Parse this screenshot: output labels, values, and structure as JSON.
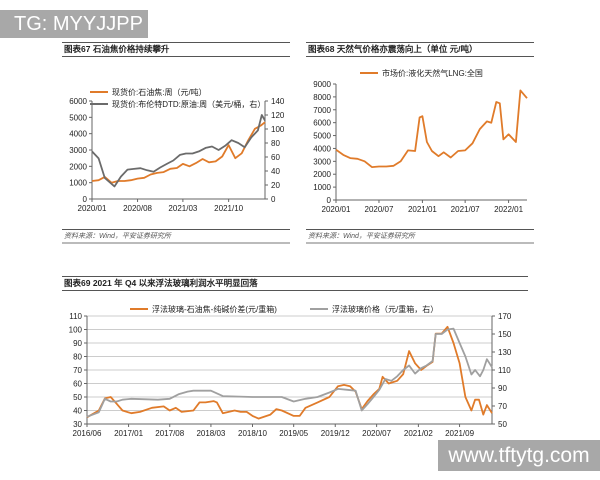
{
  "watermarks": {
    "top": "TG: MYYJJPP",
    "bottom": "www.tftytg.com"
  },
  "source": "资料来源：Wind，平安证券研究所",
  "chart_data": [
    {
      "id": "c67",
      "type": "line",
      "title": "图表67    石油焦价格持续攀升",
      "ylim": [
        0,
        6000
      ],
      "yticks": [
        0,
        1000,
        2000,
        3000,
        4000,
        5000,
        6000
      ],
      "y2lim": [
        0,
        140
      ],
      "y2ticks": [
        0,
        20,
        40,
        60,
        80,
        100,
        120,
        140
      ],
      "xlim": [
        "2020-01-01",
        "2022-03-20"
      ],
      "xticks": [
        "2020/01",
        "2020/08",
        "2021/03",
        "2021/10"
      ],
      "legend": "top",
      "grid": false,
      "series": [
        {
          "name": "现货价:石油焦:周（元/吨）",
          "axis": "left",
          "color": "#e07b2a",
          "points": [
            [
              "2020-01-01",
              1100
            ],
            [
              "2020-02-01",
              1150
            ],
            [
              "2020-03-01",
              1350
            ],
            [
              "2020-04-01",
              1000
            ],
            [
              "2020-05-01",
              1100
            ],
            [
              "2020-06-01",
              1100
            ],
            [
              "2020-07-01",
              1150
            ],
            [
              "2020-08-01",
              1250
            ],
            [
              "2020-09-01",
              1300
            ],
            [
              "2020-10-01",
              1500
            ],
            [
              "2020-11-01",
              1600
            ],
            [
              "2020-12-01",
              1650
            ],
            [
              "2021-01-01",
              1850
            ],
            [
              "2021-02-01",
              1900
            ],
            [
              "2021-03-01",
              2150
            ],
            [
              "2021-04-01",
              2000
            ],
            [
              "2021-05-01",
              2200
            ],
            [
              "2021-06-01",
              2450
            ],
            [
              "2021-07-01",
              2250
            ],
            [
              "2021-08-01",
              2300
            ],
            [
              "2021-09-01",
              2600
            ],
            [
              "2021-10-01",
              3300
            ],
            [
              "2021-11-01",
              2500
            ],
            [
              "2021-12-01",
              2800
            ],
            [
              "2022-01-01",
              3600
            ],
            [
              "2022-02-01",
              4300
            ],
            [
              "2022-03-01",
              4500
            ],
            [
              "2022-03-20",
              4700
            ]
          ]
        },
        {
          "name": "现货价:布伦特DTD:原油:周（美元/桶，右）",
          "axis": "right",
          "color": "#6b6b6b",
          "points": [
            [
              "2020-01-01",
              68
            ],
            [
              "2020-02-01",
              58
            ],
            [
              "2020-03-01",
              30
            ],
            [
              "2020-04-15",
              18
            ],
            [
              "2020-05-15",
              32
            ],
            [
              "2020-06-15",
              42
            ],
            [
              "2020-07-15",
              43
            ],
            [
              "2020-08-15",
              44
            ],
            [
              "2020-09-15",
              41
            ],
            [
              "2020-10-15",
              39
            ],
            [
              "2020-11-15",
              45
            ],
            [
              "2020-12-15",
              50
            ],
            [
              "2021-01-15",
              55
            ],
            [
              "2021-02-15",
              63
            ],
            [
              "2021-03-15",
              65
            ],
            [
              "2021-04-15",
              65
            ],
            [
              "2021-05-15",
              68
            ],
            [
              "2021-06-15",
              73
            ],
            [
              "2021-07-15",
              75
            ],
            [
              "2021-08-15",
              70
            ],
            [
              "2021-09-15",
              76
            ],
            [
              "2021-10-15",
              84
            ],
            [
              "2021-11-15",
              80
            ],
            [
              "2021-12-15",
              74
            ],
            [
              "2022-01-15",
              88
            ],
            [
              "2022-02-15",
              98
            ],
            [
              "2022-03-05",
              120
            ],
            [
              "2022-03-20",
              112
            ]
          ]
        }
      ]
    },
    {
      "id": "c68",
      "type": "line",
      "title": "图表68    天然气价格亦震荡向上（单位 元/吨）",
      "ylim": [
        0,
        9000
      ],
      "yticks": [
        0,
        1000,
        2000,
        3000,
        4000,
        5000,
        6000,
        7000,
        8000,
        9000
      ],
      "xlim": [
        "2020-01-01",
        "2022-03-20"
      ],
      "xticks": [
        "2020/01",
        "2020/07",
        "2021/01",
        "2021/07",
        "2022/01"
      ],
      "legend": "top",
      "grid": false,
      "series": [
        {
          "name": "市场价:液化天然气LNG:全国",
          "axis": "left",
          "color": "#e07b2a",
          "points": [
            [
              "2020-01-01",
              3900
            ],
            [
              "2020-02-01",
              3500
            ],
            [
              "2020-03-01",
              3250
            ],
            [
              "2020-04-01",
              3200
            ],
            [
              "2020-05-01",
              3000
            ],
            [
              "2020-06-01",
              2550
            ],
            [
              "2020-07-01",
              2600
            ],
            [
              "2020-08-01",
              2600
            ],
            [
              "2020-09-01",
              2650
            ],
            [
              "2020-10-01",
              3000
            ],
            [
              "2020-11-01",
              3850
            ],
            [
              "2020-12-01",
              3800
            ],
            [
              "2020-12-20",
              6400
            ],
            [
              "2021-01-01",
              6500
            ],
            [
              "2021-01-20",
              4500
            ],
            [
              "2021-02-10",
              3800
            ],
            [
              "2021-03-10",
              3400
            ],
            [
              "2021-04-01",
              3700
            ],
            [
              "2021-05-01",
              3300
            ],
            [
              "2021-06-01",
              3800
            ],
            [
              "2021-07-01",
              3850
            ],
            [
              "2021-08-01",
              4400
            ],
            [
              "2021-09-01",
              5500
            ],
            [
              "2021-10-01",
              6100
            ],
            [
              "2021-10-20",
              6000
            ],
            [
              "2021-11-10",
              7600
            ],
            [
              "2021-11-25",
              7500
            ],
            [
              "2021-12-10",
              4700
            ],
            [
              "2022-01-01",
              5100
            ],
            [
              "2022-02-01",
              4500
            ],
            [
              "2022-02-20",
              8500
            ],
            [
              "2022-03-20",
              7900
            ]
          ]
        }
      ]
    },
    {
      "id": "c69",
      "type": "line",
      "title": "图表69    2021 年 Q4 以来浮法玻璃利润水平明显回落",
      "ylim": [
        30,
        110
      ],
      "yticks": [
        30,
        40,
        50,
        60,
        70,
        80,
        90,
        100,
        110
      ],
      "y2lim": [
        50,
        170
      ],
      "y2ticks": [
        50,
        70,
        90,
        110,
        130,
        150,
        170
      ],
      "xlim": [
        "2016-06-01",
        "2022-02-15"
      ],
      "xticks": [
        "2016/06",
        "2017/01",
        "2017/08",
        "2018/03",
        "2018/10",
        "2019/05",
        "2019/12",
        "2020/07",
        "2021/02",
        "2021/09"
      ],
      "legend": "top",
      "grid": true,
      "series": [
        {
          "name": "浮法玻璃-石油焦-纯碱价差(元/重箱)",
          "axis": "left",
          "color": "#e07b2a",
          "points": [
            [
              "2016-06-01",
              35
            ],
            [
              "2016-08-01",
              40
            ],
            [
              "2016-09-01",
              49
            ],
            [
              "2016-10-01",
              50
            ],
            [
              "2016-11-01",
              45
            ],
            [
              "2016-12-01",
              40
            ],
            [
              "2017-01-15",
              38
            ],
            [
              "2017-03-01",
              39
            ],
            [
              "2017-05-01",
              42
            ],
            [
              "2017-07-01",
              43
            ],
            [
              "2017-08-01",
              40
            ],
            [
              "2017-09-01",
              42
            ],
            [
              "2017-10-01",
              39
            ],
            [
              "2017-12-01",
              40
            ],
            [
              "2018-01-01",
              46
            ],
            [
              "2018-02-01",
              46
            ],
            [
              "2018-03-15",
              47
            ],
            [
              "2018-04-01",
              46
            ],
            [
              "2018-05-01",
              38
            ],
            [
              "2018-07-01",
              40
            ],
            [
              "2018-08-01",
              39
            ],
            [
              "2018-09-01",
              39
            ],
            [
              "2018-10-01",
              36
            ],
            [
              "2018-11-01",
              34
            ],
            [
              "2019-01-01",
              37
            ],
            [
              "2019-02-01",
              41
            ],
            [
              "2019-03-01",
              40
            ],
            [
              "2019-05-01",
              36
            ],
            [
              "2019-06-01",
              36
            ],
            [
              "2019-07-01",
              42
            ],
            [
              "2019-09-01",
              46
            ],
            [
              "2019-11-01",
              50
            ],
            [
              "2019-12-15",
              58
            ],
            [
              "2020-01-15",
              59
            ],
            [
              "2020-02-15",
              58
            ],
            [
              "2020-03-15",
              54
            ],
            [
              "2020-04-15",
              41
            ],
            [
              "2020-05-15",
              47
            ],
            [
              "2020-06-15",
              52
            ],
            [
              "2020-07-15",
              56
            ],
            [
              "2020-08-01",
              65
            ],
            [
              "2020-09-01",
              60
            ],
            [
              "2020-10-15",
              62
            ],
            [
              "2020-11-15",
              67
            ],
            [
              "2020-12-15",
              84
            ],
            [
              "2021-01-15",
              75
            ],
            [
              "2021-02-15",
              70
            ],
            [
              "2021-03-15",
              73
            ],
            [
              "2021-04-15",
              76
            ],
            [
              "2021-05-01",
              97
            ],
            [
              "2021-06-01",
              97
            ],
            [
              "2021-07-01",
              102
            ],
            [
              "2021-08-01",
              90
            ],
            [
              "2021-09-01",
              75
            ],
            [
              "2021-10-01",
              50
            ],
            [
              "2021-11-01",
              40
            ],
            [
              "2021-11-20",
              48
            ],
            [
              "2021-12-10",
              48
            ],
            [
              "2022-01-01",
              37
            ],
            [
              "2022-01-20",
              44
            ],
            [
              "2022-02-15",
              38
            ]
          ]
        },
        {
          "name": "浮法玻璃价格（元/重箱，右）",
          "axis": "right",
          "color": "#a0a0a0",
          "points": [
            [
              "2016-06-01",
              58
            ],
            [
              "2016-08-01",
              63
            ],
            [
              "2016-09-01",
              78
            ],
            [
              "2016-10-01",
              75
            ],
            [
              "2016-11-01",
              75
            ],
            [
              "2016-12-01",
              77
            ],
            [
              "2017-01-15",
              78
            ],
            [
              "2017-06-01",
              77
            ],
            [
              "2017-08-01",
              78
            ],
            [
              "2017-09-15",
              83
            ],
            [
              "2017-11-01",
              86
            ],
            [
              "2017-12-01",
              87
            ],
            [
              "2018-03-01",
              87
            ],
            [
              "2018-05-01",
              81
            ],
            [
              "2018-10-01",
              80
            ],
            [
              "2019-03-01",
              80
            ],
            [
              "2019-05-01",
              75
            ],
            [
              "2019-07-01",
              78
            ],
            [
              "2019-09-01",
              80
            ],
            [
              "2019-11-01",
              85
            ],
            [
              "2019-12-15",
              89
            ],
            [
              "2020-02-01",
              88
            ],
            [
              "2020-03-15",
              87
            ],
            [
              "2020-04-15",
              65
            ],
            [
              "2020-05-15",
              72
            ],
            [
              "2020-06-15",
              80
            ],
            [
              "2020-07-15",
              88
            ],
            [
              "2020-08-15",
              100
            ],
            [
              "2020-09-15",
              98
            ],
            [
              "2020-10-15",
              103
            ],
            [
              "2020-11-15",
              110
            ],
            [
              "2020-12-15",
              115
            ],
            [
              "2021-01-15",
              106
            ],
            [
              "2021-02-15",
              112
            ],
            [
              "2021-03-15",
              115
            ],
            [
              "2021-04-15",
              120
            ],
            [
              "2021-05-01",
              150
            ],
            [
              "2021-06-01",
              150
            ],
            [
              "2021-07-01",
              155
            ],
            [
              "2021-08-01",
              156
            ],
            [
              "2021-09-01",
              140
            ],
            [
              "2021-10-01",
              125
            ],
            [
              "2021-11-01",
              105
            ],
            [
              "2021-11-20",
              110
            ],
            [
              "2021-12-15",
              103
            ],
            [
              "2022-01-01",
              110
            ],
            [
              "2022-01-20",
              122
            ],
            [
              "2022-02-15",
              113
            ]
          ]
        }
      ]
    }
  ]
}
